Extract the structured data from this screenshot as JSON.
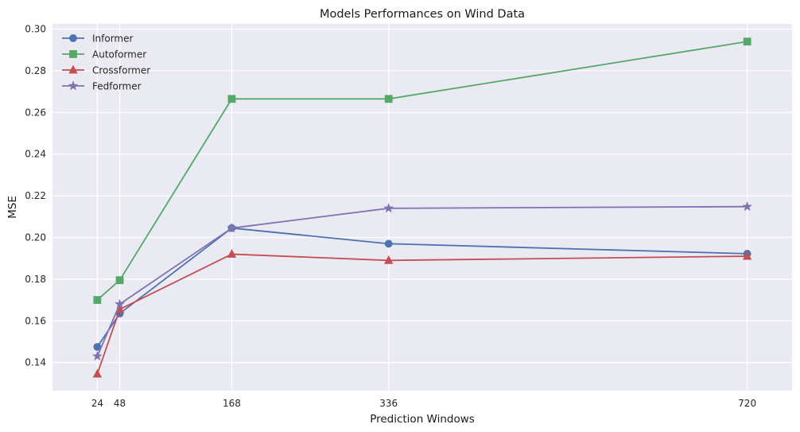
{
  "chart_data": {
    "type": "line",
    "title": "Models Performances on Wind Data",
    "xlabel": "Prediction Windows",
    "ylabel": "MSE",
    "x": [
      24,
      48,
      168,
      336,
      720
    ],
    "xticks": [
      "24",
      "48",
      "168",
      "336",
      "720"
    ],
    "yticks": [
      "0.14",
      "0.16",
      "0.18",
      "0.20",
      "0.22",
      "0.24",
      "0.26",
      "0.28",
      "0.30"
    ],
    "xlim": [
      -24,
      768
    ],
    "ylim": [
      0.1265,
      0.3025
    ],
    "grid": true,
    "legend_position": "top-left",
    "series": [
      {
        "name": "Informer",
        "marker": "circle",
        "color": "#4c72b0",
        "values": [
          0.1475,
          0.1635,
          0.2045,
          0.197,
          0.1922
        ]
      },
      {
        "name": "Autoformer",
        "marker": "square",
        "color": "#55a868",
        "values": [
          0.17,
          0.1795,
          0.2665,
          0.2665,
          0.294
        ]
      },
      {
        "name": "Crossformer",
        "marker": "triangle",
        "color": "#c44e52",
        "values": [
          0.1345,
          0.1655,
          0.192,
          0.189,
          0.191
        ]
      },
      {
        "name": "Fedformer",
        "marker": "star",
        "color": "#8172b2",
        "values": [
          0.143,
          0.168,
          0.2045,
          0.214,
          0.2148
        ]
      }
    ]
  }
}
